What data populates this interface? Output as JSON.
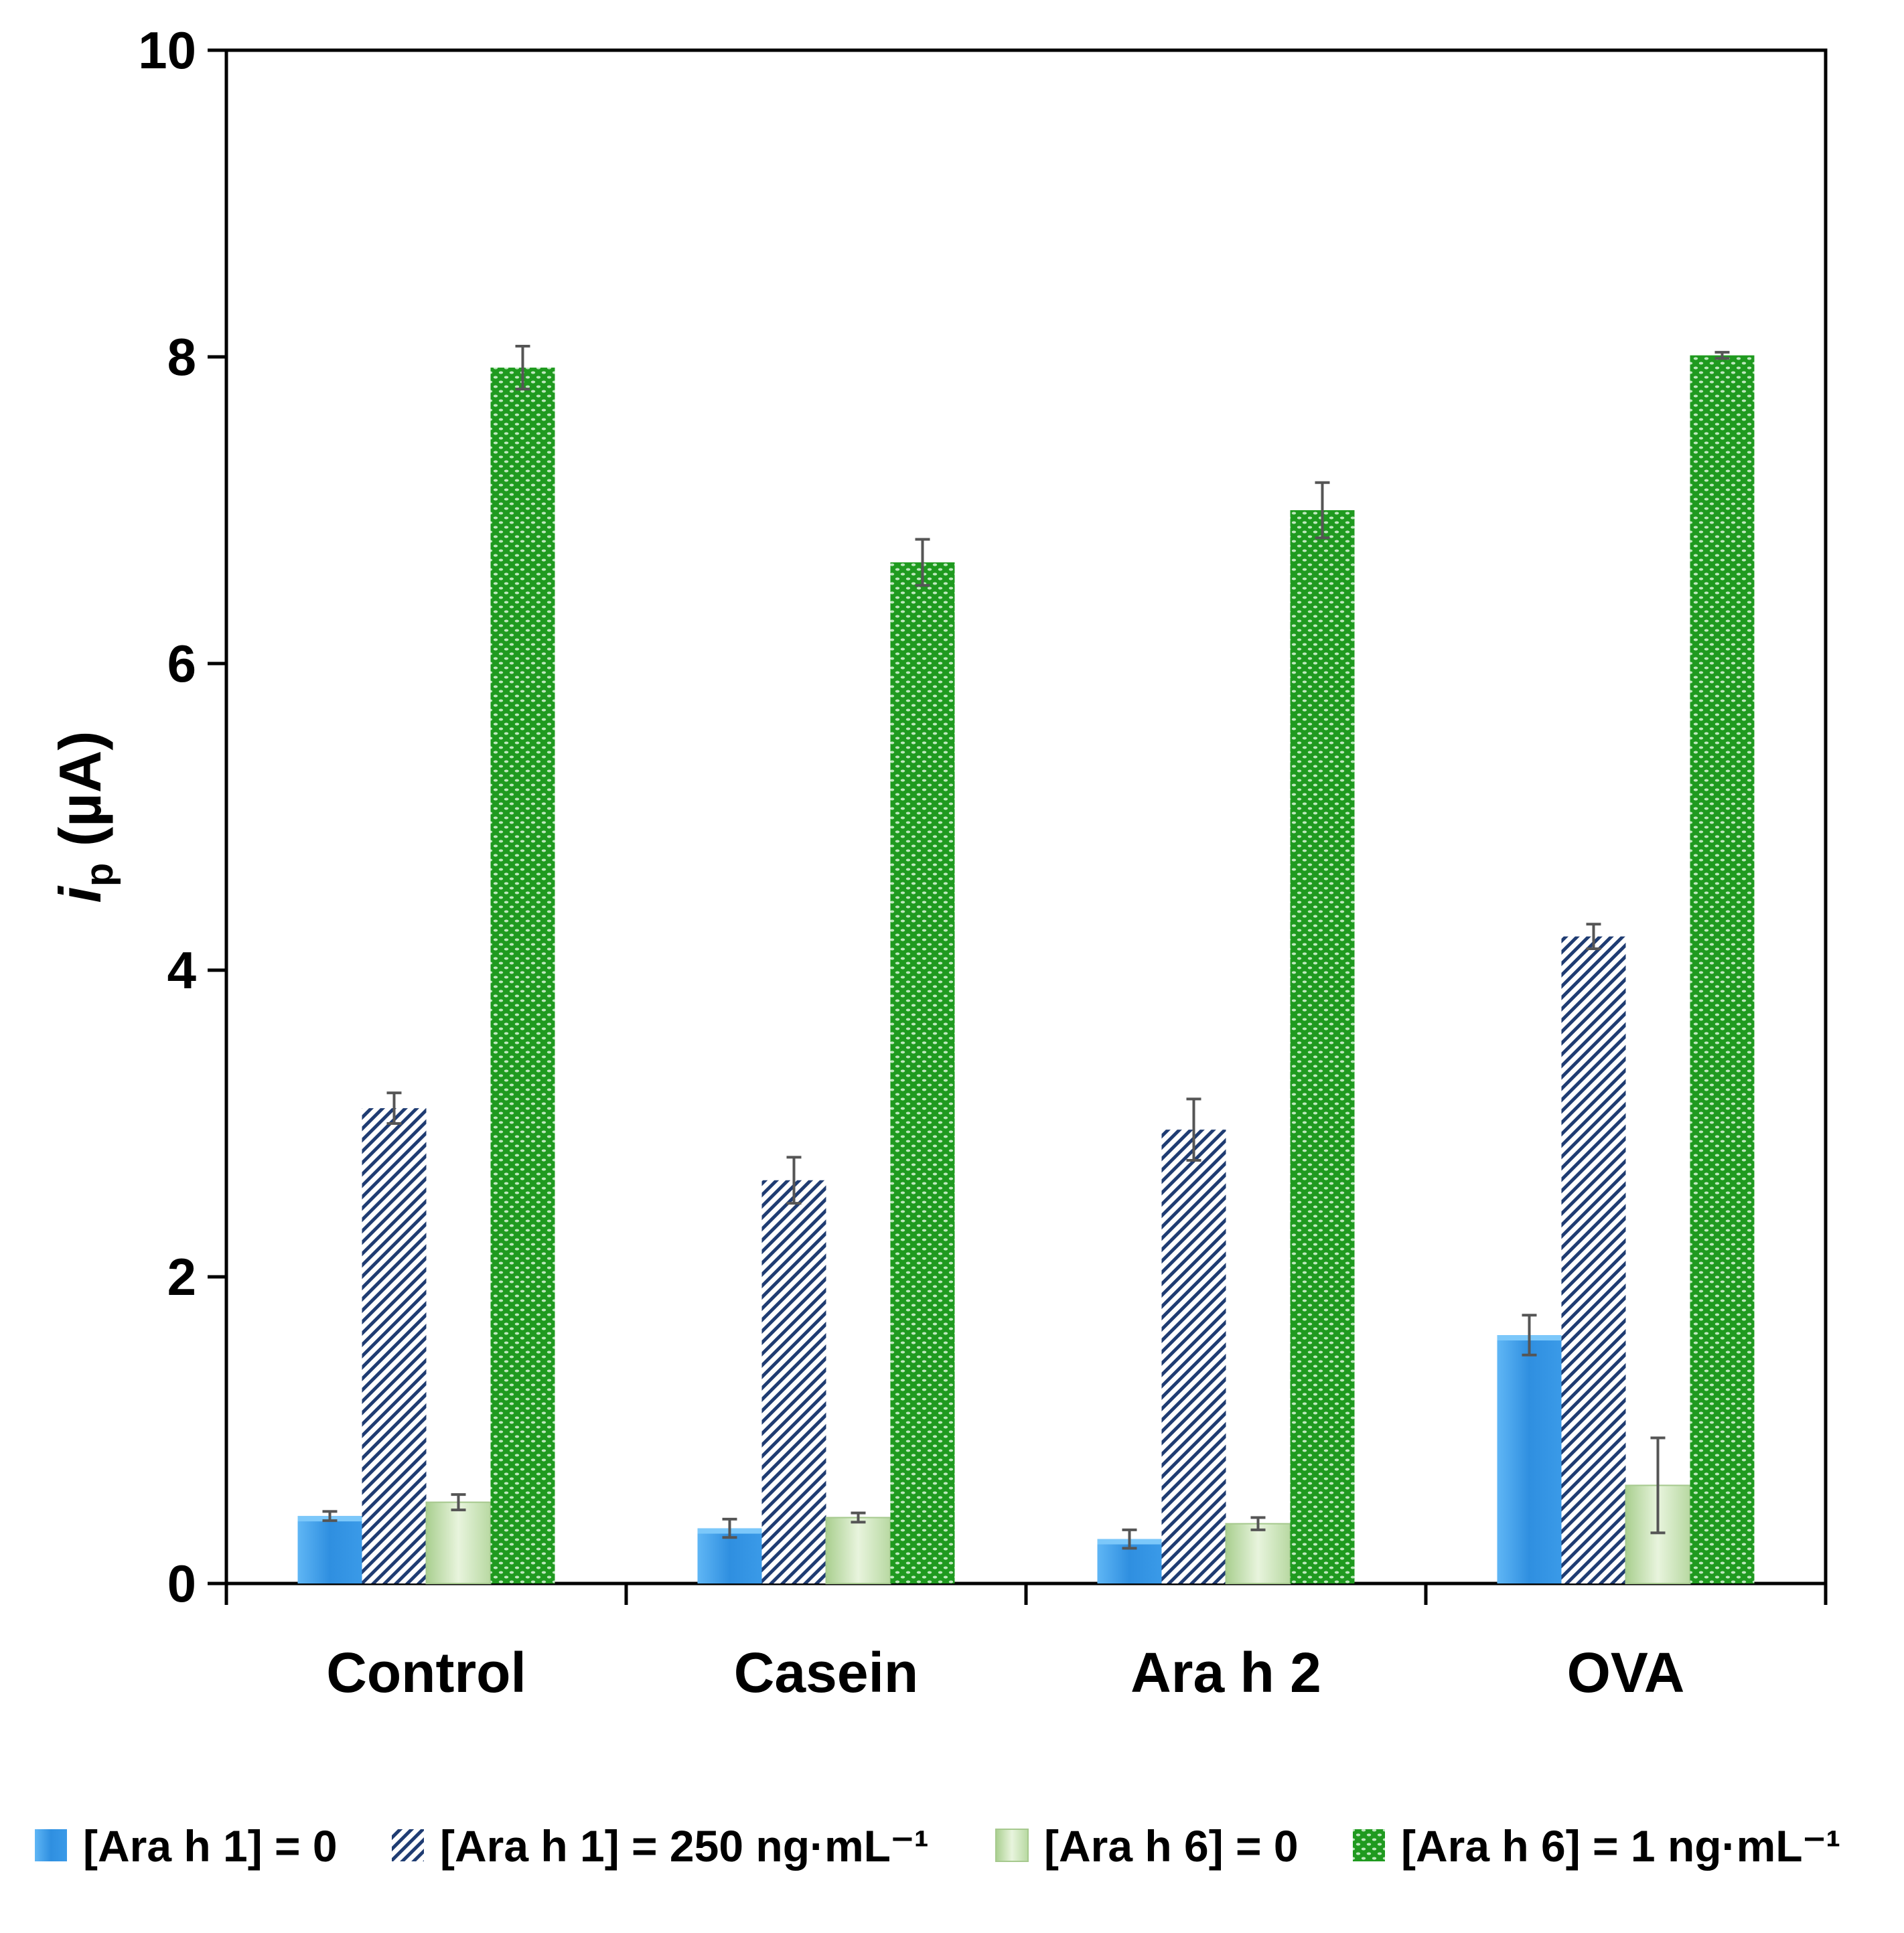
{
  "chart_data": {
    "type": "bar",
    "title": "",
    "xlabel": "",
    "ylabel": {
      "italic": "i",
      "subscript": "p",
      "rest": " (µA)"
    },
    "ylim": [
      0,
      10
    ],
    "yticks": [
      0,
      2,
      4,
      6,
      8,
      10
    ],
    "grid": false,
    "legend_position": "bottom",
    "categories": [
      "Control",
      "Casein",
      "Ara h 2",
      "OVA"
    ],
    "series": [
      {
        "name": "[Ara h 1] = 0",
        "style": "blue-solid",
        "color": "#3f9fe8",
        "values": [
          0.44,
          0.36,
          0.29,
          1.62
        ],
        "errors": [
          0.03,
          0.06,
          0.06,
          0.13
        ]
      },
      {
        "name": "[Ara h 1] = 250 ng·mL⁻¹",
        "style": "blue-hatch",
        "color": "#2d4a80",
        "values": [
          3.1,
          2.63,
          2.96,
          4.22
        ],
        "errors": [
          0.1,
          0.15,
          0.2,
          0.08
        ]
      },
      {
        "name": "[Ara h 6] = 0",
        "style": "green-light",
        "color": "#c8e0b0",
        "values": [
          0.53,
          0.43,
          0.39,
          0.64
        ],
        "errors": [
          0.05,
          0.03,
          0.04,
          0.31
        ]
      },
      {
        "name": "[Ara h 6] = 1 ng·mL⁻¹",
        "style": "green-dots",
        "color": "#2c9c2c",
        "values": [
          7.93,
          6.66,
          7.0,
          8.01
        ],
        "errors": [
          0.14,
          0.15,
          0.18,
          0.02
        ]
      }
    ]
  }
}
